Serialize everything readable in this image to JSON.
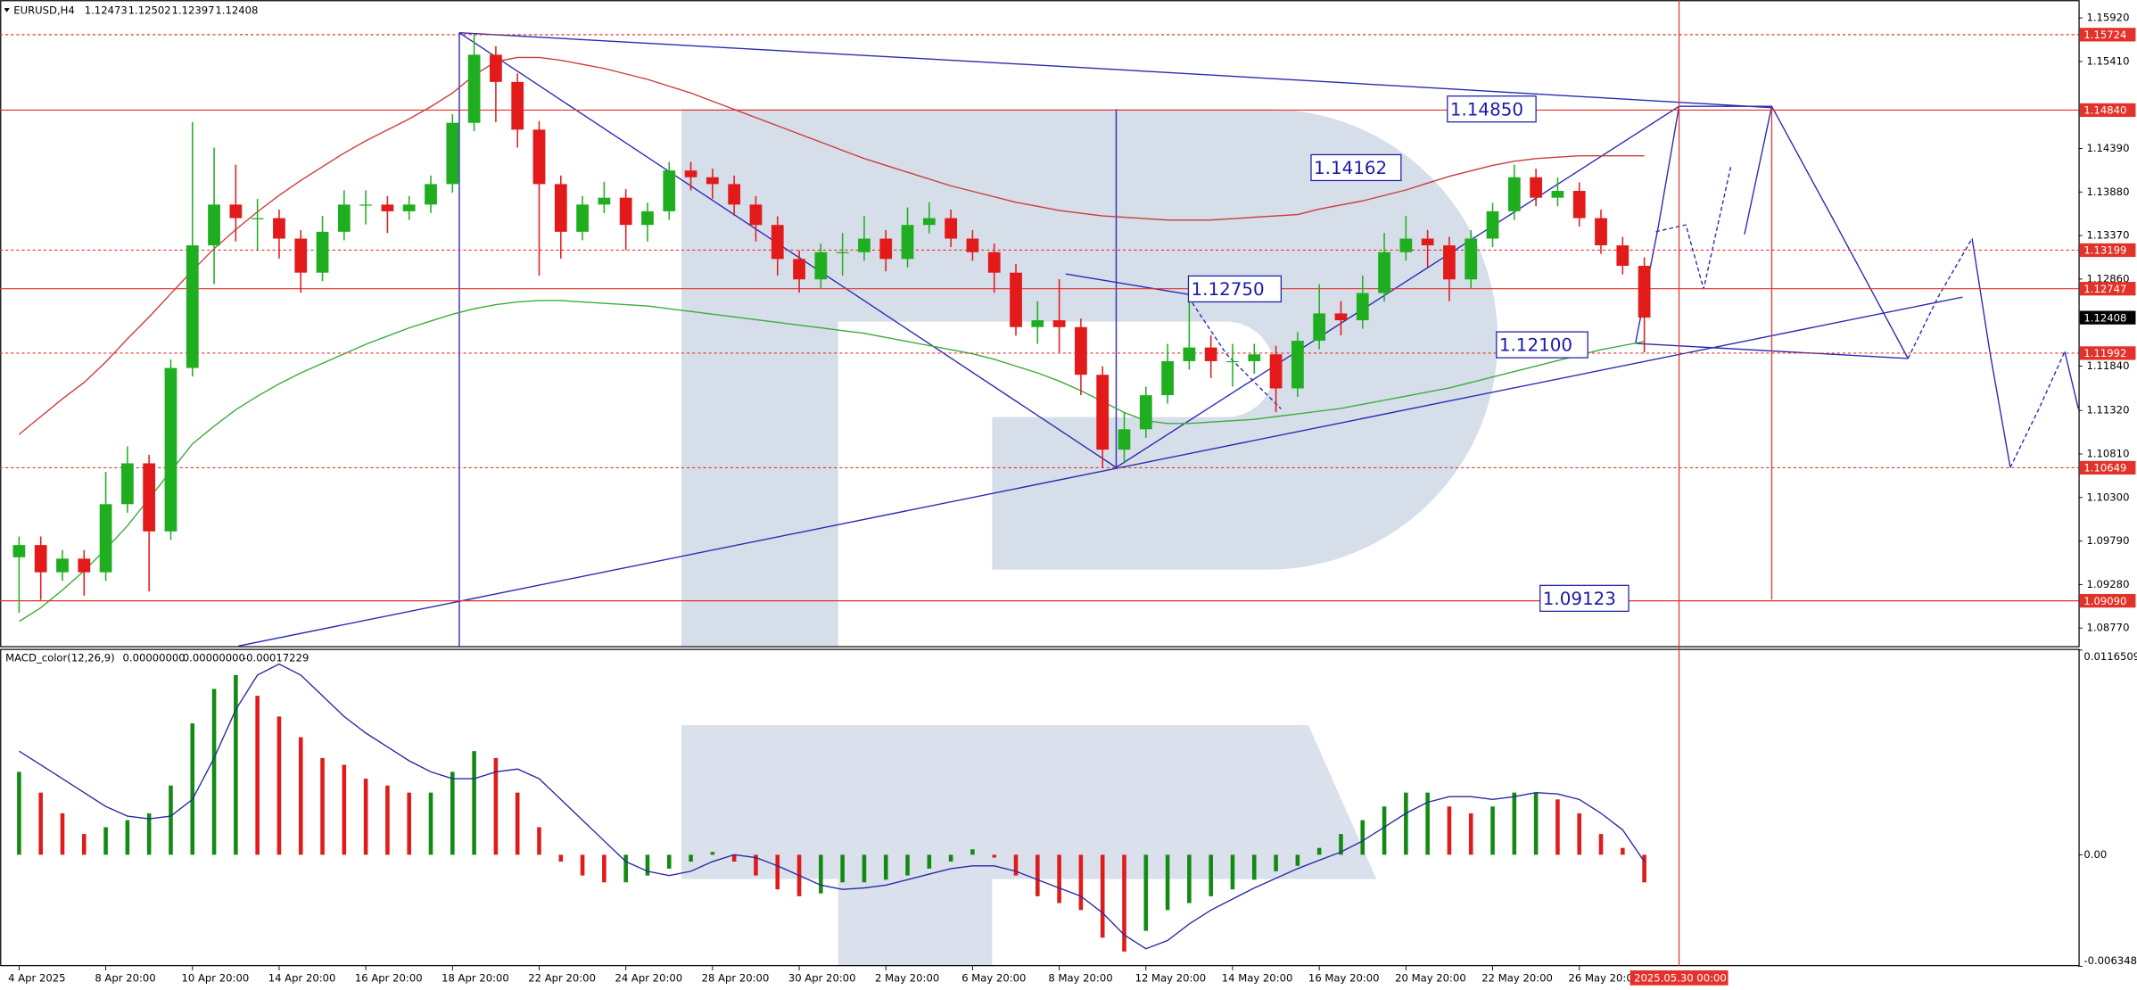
{
  "chart_data": [
    {
      "type": "candlestick",
      "title": "EURUSD,H4",
      "header_values": [
        1.12473,
        1.12502,
        1.12397,
        1.12408
      ],
      "categories": [
        "4 Apr 2025",
        null,
        null,
        null,
        "8 Apr 20:00",
        null,
        null,
        null,
        "10 Apr 20:00",
        null,
        null,
        null,
        "14 Apr 20:00",
        null,
        null,
        null,
        "16 Apr 20:00",
        null,
        null,
        null,
        "18 Apr 20:00",
        null,
        null,
        null,
        "22 Apr 20:00",
        null,
        null,
        null,
        "24 Apr 20:00",
        null,
        null,
        null,
        "28 Apr 20:00",
        null,
        null,
        null,
        "30 Apr 20:00",
        null,
        null,
        null,
        "2 May 20:00",
        null,
        null,
        null,
        "6 May 20:00",
        null,
        null,
        null,
        "8 May 20:00",
        null,
        null,
        null,
        "12 May 20:00",
        null,
        null,
        null,
        "14 May 20:00",
        null,
        null,
        null,
        "16 May 20:00",
        null,
        null,
        null,
        "20 May 20:00",
        null,
        null,
        null,
        "22 May 20:00",
        null,
        null,
        null,
        "26 May 20:00",
        null,
        null,
        null
      ],
      "open": [
        1.096,
        1.09743,
        1.09424,
        1.09584,
        1.09424,
        1.10222,
        1.10701,
        1.09903,
        1.11818,
        1.13255,
        1.13733,
        1.13574,
        1.13574,
        1.13334,
        1.12935,
        1.13414,
        1.13733,
        1.13733,
        1.13654,
        1.13733,
        1.13973,
        1.14691,
        1.15489,
        1.1517,
        1.14611,
        1.13973,
        1.13414,
        1.13733,
        1.13813,
        1.13494,
        1.13654,
        1.14132,
        1.14053,
        1.13973,
        1.13733,
        1.13494,
        1.13095,
        1.12856,
        1.13175,
        1.13175,
        1.13334,
        1.13095,
        1.13494,
        1.13574,
        1.13334,
        1.13175,
        1.12935,
        1.12297,
        1.12377,
        1.12297,
        1.11738,
        1.10861,
        1.111,
        1.11499,
        1.11898,
        1.12058,
        1.11898,
        1.11898,
        1.11978,
        1.11579,
        1.12137,
        1.12457,
        1.12377,
        1.12696,
        1.13175,
        1.13334,
        1.13255,
        1.12856,
        1.13334,
        1.13654,
        1.14053,
        1.13813,
        1.13893,
        1.13574,
        1.13255,
        1.13015
      ],
      "high": [
        1.09843,
        1.09843,
        1.09684,
        1.09684,
        1.106,
        1.109,
        1.10801,
        1.11918,
        1.147,
        1.144,
        1.142,
        1.138,
        1.13674,
        1.13434,
        1.136,
        1.139,
        1.139,
        1.13833,
        1.13833,
        1.14073,
        1.14791,
        1.15724,
        1.15589,
        1.1527,
        1.14711,
        1.14073,
        1.13833,
        1.14,
        1.13913,
        1.13754,
        1.14232,
        1.14232,
        1.14153,
        1.14073,
        1.13833,
        1.13594,
        1.13195,
        1.13275,
        1.134,
        1.136,
        1.13434,
        1.137,
        1.1376,
        1.13674,
        1.13434,
        1.13275,
        1.13035,
        1.126,
        1.1286,
        1.12397,
        1.11838,
        1.113,
        1.116,
        1.121,
        1.127,
        1.122,
        1.121,
        1.121,
        1.12078,
        1.12237,
        1.128,
        1.126,
        1.129,
        1.134,
        1.136,
        1.13434,
        1.13355,
        1.13434,
        1.13754,
        1.142,
        1.14153,
        1.1405,
        1.13993,
        1.13674,
        1.13355,
        1.13115
      ],
      "low": [
        1.0895,
        1.091,
        1.09324,
        1.0915,
        1.09324,
        1.10122,
        1.092,
        1.09803,
        1.11718,
        1.128,
        1.133,
        1.132,
        1.131,
        1.127,
        1.12835,
        1.13314,
        1.135,
        1.134,
        1.13554,
        1.13633,
        1.13873,
        1.14591,
        1.147,
        1.144,
        1.129,
        1.131,
        1.13314,
        1.13633,
        1.132,
        1.133,
        1.13554,
        1.139,
        1.138,
        1.136,
        1.133,
        1.129,
        1.127,
        1.12756,
        1.129,
        1.13075,
        1.1295,
        1.12995,
        1.13394,
        1.13234,
        1.13075,
        1.127,
        1.12197,
        1.121,
        1.12,
        1.115,
        1.10649,
        1.107,
        1.11,
        1.11399,
        1.11798,
        1.117,
        1.116,
        1.1175,
        1.113,
        1.11479,
        1.12037,
        1.122,
        1.12277,
        1.12596,
        1.13075,
        1.13,
        1.126,
        1.12756,
        1.13234,
        1.13554,
        1.13713,
        1.13713,
        1.13474,
        1.13155,
        1.12915,
        1.12
      ],
      "close": [
        1.09743,
        1.09424,
        1.09584,
        1.09424,
        1.10222,
        1.10701,
        1.09903,
        1.11818,
        1.13255,
        1.13733,
        1.13574,
        1.13574,
        1.13334,
        1.12935,
        1.13414,
        1.13733,
        1.13733,
        1.13654,
        1.13733,
        1.13973,
        1.14691,
        1.15489,
        1.1517,
        1.14611,
        1.13973,
        1.13414,
        1.13733,
        1.13813,
        1.13494,
        1.13654,
        1.14132,
        1.14053,
        1.13973,
        1.13733,
        1.13494,
        1.13095,
        1.12856,
        1.13175,
        1.13175,
        1.13334,
        1.13095,
        1.13494,
        1.13574,
        1.13334,
        1.13175,
        1.12935,
        1.12297,
        1.12377,
        1.12297,
        1.11738,
        1.10861,
        1.111,
        1.11499,
        1.11898,
        1.12058,
        1.11898,
        1.11898,
        1.11978,
        1.11579,
        1.12137,
        1.12457,
        1.12377,
        1.12696,
        1.13175,
        1.13334,
        1.13255,
        1.12856,
        1.13334,
        1.13654,
        1.14053,
        1.13813,
        1.13893,
        1.13574,
        1.13255,
        1.13015,
        1.12408
      ],
      "up_color": "#1fae1f",
      "down_color": "#e31a1a",
      "series": [
        {
          "color": "#cc3a3a",
          "values": [
            1.1104,
            1.11248,
            1.11456,
            1.11648,
            1.11888,
            1.1216,
            1.12416,
            1.12688,
            1.1296,
            1.13216,
            1.1344,
            1.13648,
            1.1384,
            1.14016,
            1.14176,
            1.14336,
            1.1448,
            1.14608,
            1.14736,
            1.1488,
            1.1504,
            1.15248,
            1.15408,
            1.15456,
            1.15456,
            1.15424,
            1.15376,
            1.15328,
            1.15264,
            1.152,
            1.1512,
            1.1504,
            1.14944,
            1.14848,
            1.14752,
            1.14656,
            1.1456,
            1.14464,
            1.14368,
            1.14272,
            1.14192,
            1.14112,
            1.14032,
            1.13952,
            1.13888,
            1.13824,
            1.1376,
            1.13712,
            1.13664,
            1.13632,
            1.136,
            1.13584,
            1.13568,
            1.13552,
            1.13552,
            1.13552,
            1.13568,
            1.13584,
            1.136,
            1.13616,
            1.1368,
            1.13728,
            1.13776,
            1.1384,
            1.13904,
            1.13984,
            1.14064,
            1.14128,
            1.14192,
            1.1424,
            1.14272,
            1.14288,
            1.14304,
            1.14304,
            1.14304,
            1.14304
          ]
        },
        {
          "color": "#3caa3c",
          "values": [
            1.08848,
            1.09008,
            1.09216,
            1.0944,
            1.09696,
            1.09968,
            1.10288,
            1.10608,
            1.10928,
            1.11136,
            1.11328,
            1.11488,
            1.11632,
            1.1176,
            1.11872,
            1.11984,
            1.12096,
            1.12192,
            1.12288,
            1.12368,
            1.12448,
            1.12512,
            1.1256,
            1.12592,
            1.12608,
            1.12608,
            1.12592,
            1.12576,
            1.1256,
            1.12544,
            1.12512,
            1.1248,
            1.12448,
            1.12416,
            1.12384,
            1.12352,
            1.1232,
            1.12288,
            1.12256,
            1.12224,
            1.12176,
            1.12128,
            1.1208,
            1.12032,
            1.11984,
            1.1192,
            1.1184,
            1.1176,
            1.11664,
            1.11552,
            1.11424,
            1.11296,
            1.112,
            1.11168,
            1.11168,
            1.11184,
            1.112,
            1.11216,
            1.11248,
            1.1128,
            1.11312,
            1.11344,
            1.11392,
            1.1144,
            1.11488,
            1.11536,
            1.11584,
            1.11648,
            1.11712,
            1.11776,
            1.1184,
            1.11904,
            1.11968,
            1.12032,
            1.1208,
            1.12128
          ]
        }
      ],
      "ylim": [
        1.0856,
        1.1613
      ],
      "yticks": [
        {
          "value": 1.1592,
          "label": "1.15920"
        },
        {
          "value": 1.1541,
          "label": "1.15410"
        },
        {
          "value": 1.1439,
          "label": "1.14390"
        },
        {
          "value": 1.1388,
          "label": "1.13880"
        },
        {
          "value": 1.1337,
          "label": "1.13370"
        },
        {
          "value": 1.1286,
          "label": "1.12860"
        },
        {
          "value": 1.1184,
          "label": "1.11840"
        },
        {
          "value": 1.1132,
          "label": "1.11320"
        },
        {
          "value": 1.1081,
          "label": "1.10810"
        },
        {
          "value": 1.103,
          "label": "1.10300"
        },
        {
          "value": 1.0979,
          "label": "1.09790"
        },
        {
          "value": 1.0928,
          "label": "1.09280"
        },
        {
          "value": 1.0877,
          "label": "1.08770"
        }
      ],
      "grid": false,
      "levels": [
        {
          "price": 1.15724,
          "style": "dashed"
        },
        {
          "price": 1.1484,
          "label": "1.14840",
          "style": "solid"
        },
        {
          "price": 1.13199,
          "style": "dashed"
        },
        {
          "price": 1.12747,
          "style": "solid"
        },
        {
          "price": 1.11992,
          "style": "dashed"
        },
        {
          "price": 1.10649,
          "style": "dashed"
        },
        {
          "price": 1.0909,
          "label": "1.09090",
          "style": "solid"
        }
      ],
      "level_color": "#e3322a",
      "last_price": 1.12408,
      "annotations": [
        "1.14850",
        "1.14162",
        "1.12750",
        "1.12100",
        "1.09123"
      ],
      "marker_time": "2025.05.30 00:00"
    },
    {
      "type": "macd",
      "title": "MACD_color(12,26,9)",
      "readout": [
        {
          "value": 0,
          "label": "0.00000000"
        },
        {
          "value": 0,
          "label": "0.00000000"
        },
        -0.00017229
      ],
      "values": [
        0.00472,
        0.00354,
        0.00236,
        0.00118,
        0.00157,
        0.00197,
        0.00236,
        0.00394,
        0.00748,
        0.00944,
        0.01023,
        0.00905,
        0.00787,
        0.00669,
        0.00551,
        0.00512,
        0.00433,
        0.00394,
        0.00354,
        0.00354,
        0.00472,
        0.0059,
        0.00551,
        0.00354,
        0.00157,
        -0.00039,
        -0.00118,
        -0.00157,
        -0.00157,
        -0.00118,
        -0.00079,
        -0.00039,
        0.00016,
        -0.00039,
        -0.00118,
        -0.00197,
        -0.00236,
        -0.0022,
        -0.00157,
        -0.00157,
        -0.00142,
        -0.00118,
        -0.00079,
        -0.00039,
        0.00031,
        -0.00016,
        -0.00118,
        -0.00236,
        -0.00275,
        -0.00315,
        -0.00472,
        -0.00551,
        -0.00433,
        -0.00315,
        -0.00275,
        -0.00236,
        -0.00197,
        -0.00142,
        -0.00094,
        -0.00063,
        0.00039,
        0.00118,
        0.00197,
        0.00275,
        0.00354,
        0.00354,
        0.00275,
        0.00236,
        0.00275,
        0.00354,
        0.00354,
        0.00315,
        0.00236,
        0.00118,
        0.00039,
        -0.00157
      ],
      "signal": {
        "color": "#2a2aa0",
        "values": [
          0.0059,
          0.00512,
          0.00433,
          0.00354,
          0.00275,
          0.0022,
          0.00205,
          0.0022,
          0.00315,
          0.00551,
          0.00826,
          0.01023,
          0.01086,
          0.01023,
          0.00905,
          0.00787,
          0.00693,
          0.00614,
          0.00535,
          0.00472,
          0.00433,
          0.00433,
          0.00472,
          0.00488,
          0.00433,
          0.00315,
          0.00197,
          0.00079,
          -0.00039,
          -0.00094,
          -0.00118,
          -0.00094,
          -0.00039,
          0,
          -0.00016,
          -0.00063,
          -0.00118,
          -0.00173,
          -0.00197,
          -0.00189,
          -0.00173,
          -0.00142,
          -0.0011,
          -0.00079,
          -0.00063,
          -0.00063,
          -0.00094,
          -0.00142,
          -0.00189,
          -0.00236,
          -0.00331,
          -0.00456,
          -0.00535,
          -0.00488,
          -0.00394,
          -0.00315,
          -0.00252,
          -0.00189,
          -0.00134,
          -0.00079,
          -0.00031,
          0.00016,
          0.00079,
          0.00157,
          0.00236,
          0.00299,
          0.00331,
          0.00331,
          0.00315,
          0.00331,
          0.00354,
          0.00346,
          0.00315,
          0.00236,
          0.00142,
          -0.00039
        ]
      },
      "up_color": "#138a13",
      "down_color": "#e01b1b",
      "ylim": [
        -0.0063484,
        0.0116509
      ],
      "yticks": [
        0.0116509,
        {
          "value": 0,
          "label": "0.00"
        },
        -0.0063484
      ]
    }
  ]
}
